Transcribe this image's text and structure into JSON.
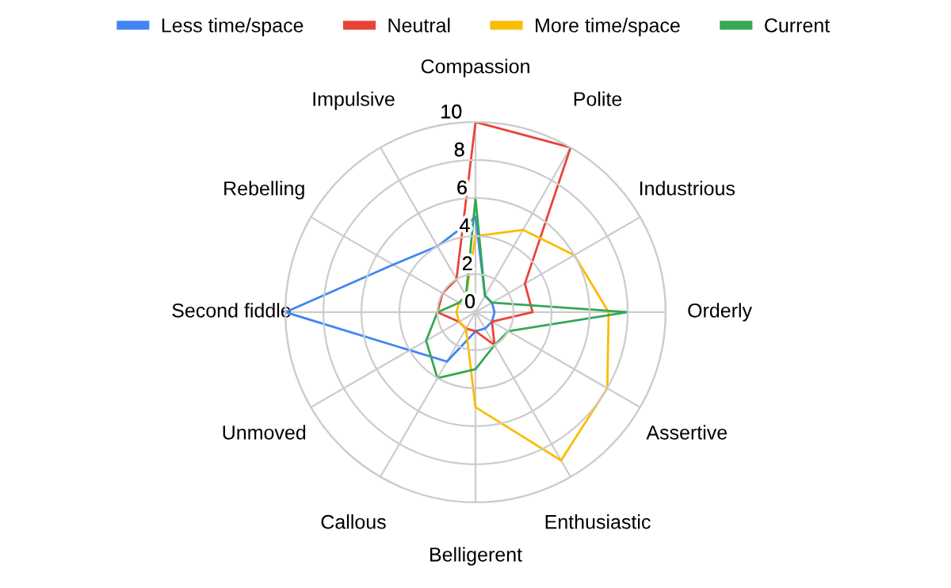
{
  "chart_data": {
    "type": "radar",
    "categories": [
      "Compassion",
      "Polite",
      "Industrious",
      "Orderly",
      "Assertive",
      "Enthusiastic",
      "Belligerent",
      "Callous",
      "Unmoved",
      "Second fiddle",
      "Rebelling",
      "Impulsive"
    ],
    "series": [
      {
        "name": "Less time/space",
        "color": "#4285f4",
        "values": [
          5,
          1,
          1,
          1,
          1,
          1,
          1,
          3,
          4,
          10,
          5,
          4
        ]
      },
      {
        "name": "Neutral",
        "color": "#ea4335",
        "values": [
          10,
          10,
          3,
          3,
          1,
          2,
          1,
          1,
          1,
          2,
          2,
          2
        ]
      },
      {
        "name": "More time/space",
        "color": "#fbbc04",
        "values": [
          4,
          5,
          6,
          7,
          8,
          9,
          5,
          1,
          1,
          1,
          1,
          1
        ]
      },
      {
        "name": "Current",
        "color": "#34a853",
        "values": [
          6,
          1,
          1,
          8,
          2,
          2,
          3,
          4,
          3,
          2,
          1,
          1
        ]
      }
    ],
    "ylim": [
      0,
      10
    ],
    "yticks": [
      0,
      2,
      4,
      6,
      8,
      10
    ],
    "grid": true,
    "legend": "top",
    "marker": "none",
    "line_style": "solid"
  }
}
